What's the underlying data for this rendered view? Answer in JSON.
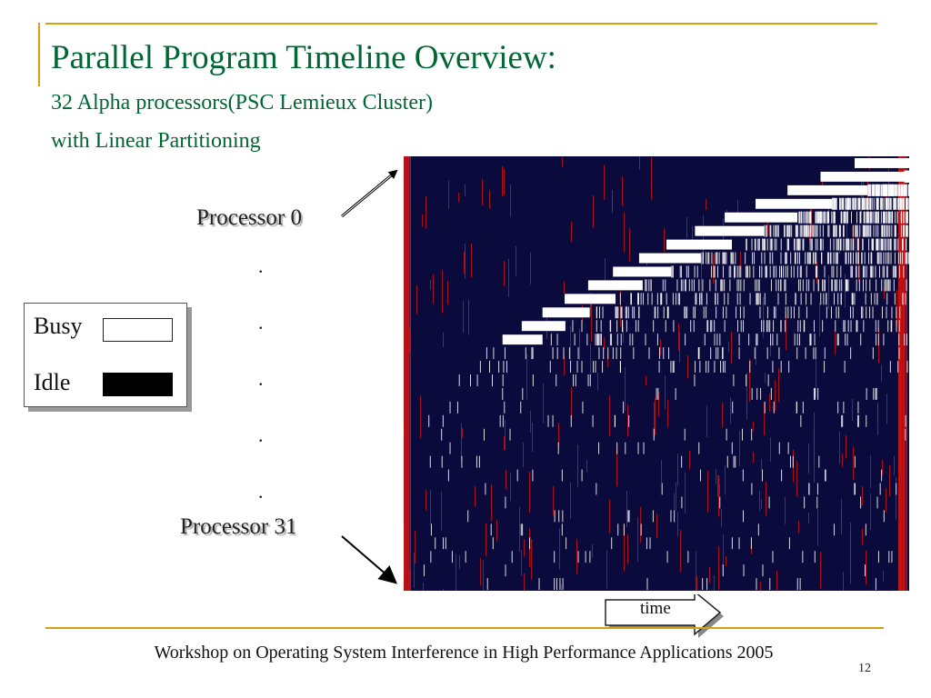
{
  "slide": {
    "title": "Parallel Program Timeline Overview:",
    "subtitle_line1": "32 Alpha processors(PSC Lemieux Cluster)",
    "subtitle_line2": "with Linear Partitioning",
    "processor_first_label": "Processor 0",
    "processor_last_label": "Processor 31",
    "ellipsis_dot": ".",
    "legend": {
      "busy_label": "Busy",
      "idle_label": "Idle"
    },
    "time_label": "time",
    "footer": "Workshop on Operating System Interference in High Performance Applications 2005",
    "page_number": "12",
    "colors": {
      "title": "#006633",
      "accent_rule": "#d4a017",
      "timeline_background": "#0a0a3c",
      "busy": "#ffffff",
      "idle": "#000000",
      "noise": "#cc1111"
    }
  }
}
